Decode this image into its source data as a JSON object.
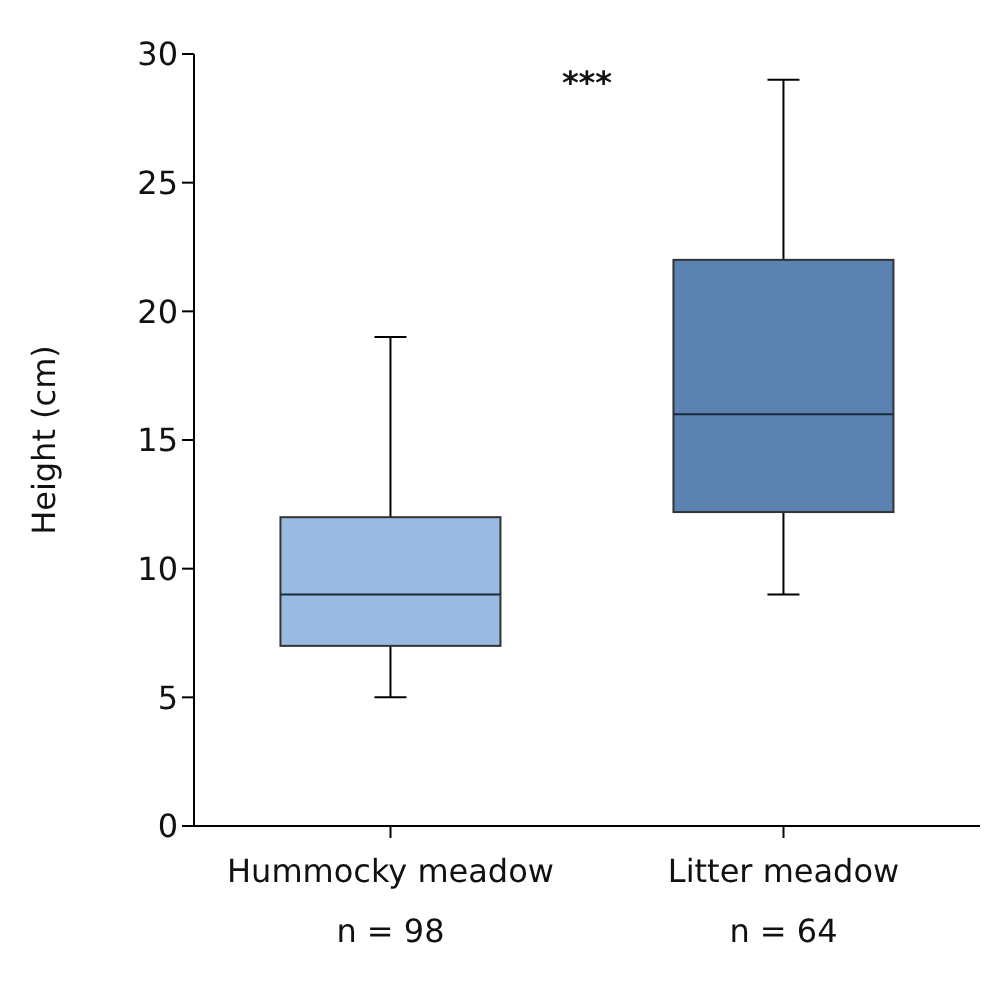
{
  "chart_data": {
    "type": "box",
    "ylabel": "Height (cm)",
    "categories": [
      "Hummocky meadow",
      "Litter meadow"
    ],
    "colors": [
      "#99bae3",
      "#5b82b0"
    ],
    "boxes": [
      {
        "low": 5,
        "q1": 7,
        "median": 9,
        "q3": 12,
        "high": 19
      },
      {
        "low": 9,
        "q1": 12.2,
        "median": 16,
        "q3": 22,
        "high": 29
      }
    ],
    "ylim": [
      0,
      30
    ],
    "yticks": [
      0,
      5,
      10,
      15,
      20,
      25,
      30
    ],
    "grid": false,
    "annotations": [
      "***",
      "n = 98",
      "n = 64"
    ]
  }
}
